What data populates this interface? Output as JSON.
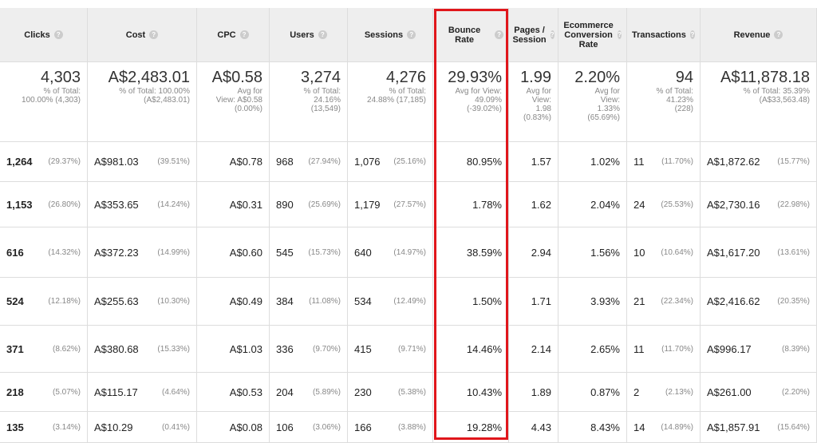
{
  "table": {
    "columns": [
      {
        "header": "Clicks",
        "total": {
          "value": "4,303",
          "note": [
            "% of Total:",
            "100.00% (4,303)"
          ]
        }
      },
      {
        "header": "Cost",
        "total": {
          "value": "A$2,483.01",
          "note": [
            "% of Total: 100.00%",
            "(A$2,483.01)"
          ]
        }
      },
      {
        "header": "CPC",
        "total": {
          "value": "A$0.58",
          "note": [
            "Avg for",
            "View: A$0.58",
            "(0.00%)"
          ]
        }
      },
      {
        "header": "Users",
        "total": {
          "value": "3,274",
          "note": [
            "% of Total:",
            "24.16%",
            "(13,549)"
          ]
        }
      },
      {
        "header": "Sessions",
        "total": {
          "value": "4,276",
          "note": [
            "% of Total:",
            "24.88% (17,185)"
          ]
        }
      },
      {
        "header": "Bounce Rate",
        "total": {
          "value": "29.93%",
          "note": [
            "Avg for View:",
            "49.09%",
            "(-39.02%)"
          ]
        }
      },
      {
        "header": "Pages / Session",
        "total": {
          "value": "1.99",
          "note": [
            "Avg for",
            "View:",
            "1.98",
            "(0.83%)"
          ]
        }
      },
      {
        "header": "Ecommerce Conversion Rate",
        "total": {
          "value": "2.20%",
          "note": [
            "Avg for",
            "View:",
            "1.33%",
            "(65.69%)"
          ]
        }
      },
      {
        "header": "Transactions",
        "total": {
          "value": "94",
          "note": [
            "% of Total:",
            "41.23%",
            "(228)"
          ]
        }
      },
      {
        "header": "Revenue",
        "total": {
          "value": "A$11,878.18",
          "note": [
            "% of Total: 35.39%",
            "(A$33,563.48)"
          ]
        }
      }
    ],
    "rows": [
      [
        {
          "value": "1,264",
          "pct": "(29.37%)"
        },
        {
          "value": "A$981.03",
          "pct": "(39.51%)"
        },
        {
          "value": "A$0.78"
        },
        {
          "value": "968",
          "pct": "(27.94%)"
        },
        {
          "value": "1,076",
          "pct": "(25.16%)"
        },
        {
          "value": "80.95%"
        },
        {
          "value": "1.57"
        },
        {
          "value": "1.02%"
        },
        {
          "value": "11",
          "pct": "(11.70%)"
        },
        {
          "value": "A$1,872.62",
          "pct": "(15.77%)"
        }
      ],
      [
        {
          "value": "1,153",
          "pct": "(26.80%)"
        },
        {
          "value": "A$353.65",
          "pct": "(14.24%)"
        },
        {
          "value": "A$0.31"
        },
        {
          "value": "890",
          "pct": "(25.69%)"
        },
        {
          "value": "1,179",
          "pct": "(27.57%)"
        },
        {
          "value": "1.78%"
        },
        {
          "value": "1.62"
        },
        {
          "value": "2.04%"
        },
        {
          "value": "24",
          "pct": "(25.53%)"
        },
        {
          "value": "A$2,730.16",
          "pct": "(22.98%)"
        }
      ],
      [
        {
          "value": "616",
          "pct": "(14.32%)"
        },
        {
          "value": "A$372.23",
          "pct": "(14.99%)"
        },
        {
          "value": "A$0.60"
        },
        {
          "value": "545",
          "pct": "(15.73%)"
        },
        {
          "value": "640",
          "pct": "(14.97%)"
        },
        {
          "value": "38.59%"
        },
        {
          "value": "2.94"
        },
        {
          "value": "1.56%"
        },
        {
          "value": "10",
          "pct": "(10.64%)"
        },
        {
          "value": "A$1,617.20",
          "pct": "(13.61%)"
        }
      ],
      [
        {
          "value": "524",
          "pct": "(12.18%)"
        },
        {
          "value": "A$255.63",
          "pct": "(10.30%)"
        },
        {
          "value": "A$0.49"
        },
        {
          "value": "384",
          "pct": "(11.08%)"
        },
        {
          "value": "534",
          "pct": "(12.49%)"
        },
        {
          "value": "1.50%"
        },
        {
          "value": "1.71"
        },
        {
          "value": "3.93%"
        },
        {
          "value": "21",
          "pct": "(22.34%)"
        },
        {
          "value": "A$2,416.62",
          "pct": "(20.35%)"
        }
      ],
      [
        {
          "value": "371",
          "pct": "(8.62%)"
        },
        {
          "value": "A$380.68",
          "pct": "(15.33%)"
        },
        {
          "value": "A$1.03"
        },
        {
          "value": "336",
          "pct": "(9.70%)"
        },
        {
          "value": "415",
          "pct": "(9.71%)"
        },
        {
          "value": "14.46%"
        },
        {
          "value": "2.14"
        },
        {
          "value": "2.65%"
        },
        {
          "value": "11",
          "pct": "(11.70%)"
        },
        {
          "value": "A$996.17",
          "pct": "(8.39%)"
        }
      ],
      [
        {
          "value": "218",
          "pct": "(5.07%)"
        },
        {
          "value": "A$115.17",
          "pct": "(4.64%)"
        },
        {
          "value": "A$0.53"
        },
        {
          "value": "204",
          "pct": "(5.89%)"
        },
        {
          "value": "230",
          "pct": "(5.38%)"
        },
        {
          "value": "10.43%"
        },
        {
          "value": "1.89"
        },
        {
          "value": "0.87%"
        },
        {
          "value": "2",
          "pct": "(2.13%)"
        },
        {
          "value": "A$261.00",
          "pct": "(2.20%)"
        }
      ],
      [
        {
          "value": "135",
          "pct": "(3.14%)"
        },
        {
          "value": "A$10.29",
          "pct": "(0.41%)"
        },
        {
          "value": "A$0.08"
        },
        {
          "value": "106",
          "pct": "(3.06%)"
        },
        {
          "value": "166",
          "pct": "(3.88%)"
        },
        {
          "value": "19.28%"
        },
        {
          "value": "4.43"
        },
        {
          "value": "8.43%"
        },
        {
          "value": "14",
          "pct": "(14.89%)"
        },
        {
          "value": "A$1,857.91",
          "pct": "(15.64%)"
        }
      ]
    ]
  }
}
